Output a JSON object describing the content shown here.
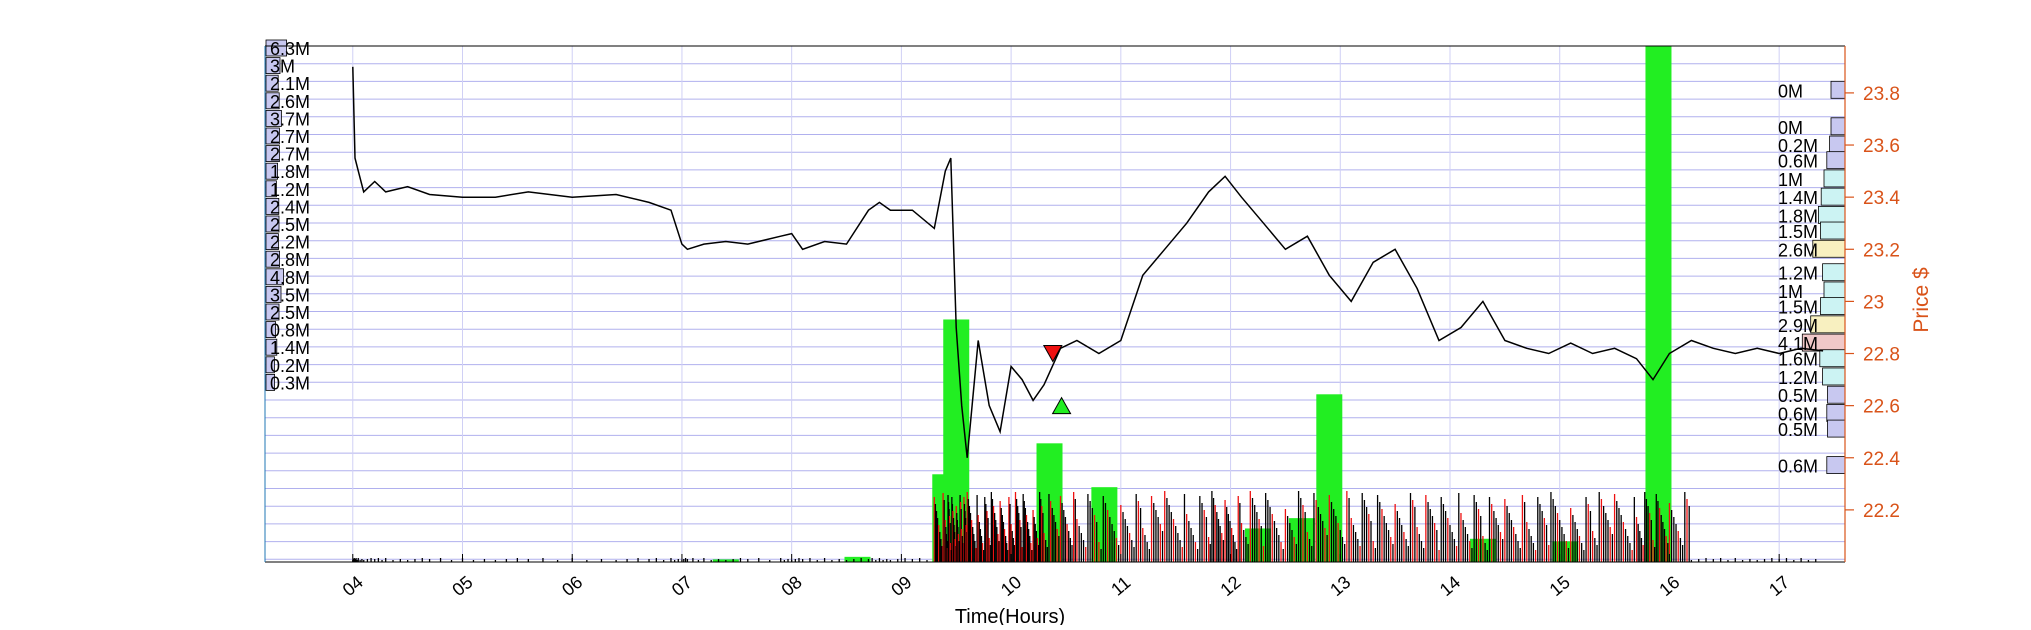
{
  "chart_data": {
    "type": "line",
    "title": "",
    "xlabel": "Time(Hours)",
    "ylabel": "Price $",
    "x_ticks": [
      "04",
      "05",
      "06",
      "07",
      "08",
      "09",
      "10",
      "11",
      "12",
      "13",
      "14",
      "15",
      "16",
      "17"
    ],
    "xlim": [
      3.2,
      17.6
    ],
    "y_ticks": [
      22.2,
      22.4,
      22.6,
      22.8,
      23,
      23.2,
      23.4,
      23.6,
      23.8
    ],
    "ylim": [
      22.0,
      23.98
    ],
    "grid": true,
    "colors": {
      "price_line": "#000000",
      "axis_right": "#d95319",
      "grid": "#b0b0ee",
      "grid_minor": "#d0d0f5",
      "buy_volume": "#22ee22",
      "sell_volume": "#ee1111",
      "profile_left": "#c8c8f0",
      "profile_right": "#c8c8f0",
      "profile_cyan": "#ccf3f3",
      "profile_yellow": "#f8f0c0",
      "profile_pink": "#f0c8c8",
      "sell_marker": "#ee1111",
      "buy_marker": "#22ee22"
    },
    "left_volume_profile_labels": [
      "6.3M",
      "3M",
      "2.1M",
      "2.6M",
      "3.7M",
      "2.7M",
      "2.7M",
      "1.8M",
      "1.2M",
      "2.4M",
      "2.5M",
      "2.2M",
      "2.8M",
      "4.8M",
      "3.5M",
      "2.5M",
      "0.8M",
      "1.4M",
      "0.2M",
      "0.3M"
    ],
    "right_volume_profile_labels": [
      "0M",
      "0M",
      "0.2M",
      "0.6M",
      "1M",
      "1.4M",
      "1.8M",
      "1.5M",
      "2.6M",
      "1.2M",
      "1M",
      "1.5M",
      "2.9M",
      "4.1M",
      "1.6M",
      "1.2M",
      "0.5M",
      "0.6M",
      "0.5M",
      "0.6M"
    ],
    "right_profile_prices": [
      23.81,
      23.67,
      23.6,
      23.54,
      23.47,
      23.4,
      23.33,
      23.27,
      23.2,
      23.11,
      23.04,
      22.98,
      22.91,
      22.84,
      22.78,
      22.71,
      22.64,
      22.57,
      22.51,
      22.37
    ],
    "price_series": {
      "x": [
        4.0,
        4.02,
        4.05,
        4.1,
        4.2,
        4.3,
        4.5,
        4.7,
        5.0,
        5.3,
        5.6,
        6.0,
        6.4,
        6.7,
        6.9,
        7.0,
        7.05,
        7.2,
        7.4,
        7.6,
        7.9,
        8.0,
        8.1,
        8.3,
        8.5,
        8.7,
        8.8,
        8.9,
        9.1,
        9.3,
        9.4,
        9.45,
        9.5,
        9.55,
        9.6,
        9.7,
        9.8,
        9.9,
        10.0,
        10.1,
        10.2,
        10.3,
        10.45,
        10.6,
        10.8,
        11.0,
        11.2,
        11.4,
        11.6,
        11.8,
        11.95,
        12.1,
        12.3,
        12.5,
        12.7,
        12.9,
        13.1,
        13.3,
        13.5,
        13.7,
        13.9,
        14.1,
        14.3,
        14.5,
        14.7,
        14.9,
        15.1,
        15.3,
        15.5,
        15.7,
        15.85,
        16.0,
        16.2,
        16.4,
        16.6,
        16.8,
        17.0,
        17.2,
        17.4
      ],
      "y": [
        23.9,
        23.55,
        23.5,
        23.42,
        23.46,
        23.42,
        23.44,
        23.41,
        23.4,
        23.4,
        23.42,
        23.4,
        23.41,
        23.38,
        23.35,
        23.22,
        23.2,
        23.22,
        23.23,
        23.22,
        23.25,
        23.26,
        23.2,
        23.23,
        23.22,
        23.35,
        23.38,
        23.35,
        23.35,
        23.28,
        23.5,
        23.55,
        22.9,
        22.6,
        22.4,
        22.85,
        22.6,
        22.5,
        22.75,
        22.7,
        22.62,
        22.68,
        22.82,
        22.85,
        22.8,
        22.85,
        23.1,
        23.2,
        23.3,
        23.42,
        23.48,
        23.4,
        23.3,
        23.2,
        23.25,
        23.1,
        23.0,
        23.15,
        23.2,
        23.05,
        22.85,
        22.9,
        23.0,
        22.85,
        22.82,
        22.8,
        22.84,
        22.8,
        22.82,
        22.78,
        22.7,
        22.8,
        22.85,
        22.82,
        22.8,
        22.82,
        22.8,
        22.82,
        22.81
      ]
    },
    "volume_bars": {
      "x": [
        7.4,
        8.6,
        9.4,
        9.5,
        10.35,
        10.85,
        12.25,
        12.65,
        12.9,
        14.3,
        15.05,
        15.9
      ],
      "buy_volume_M": [
        1.0,
        2.0,
        34.0,
        94.0,
        46.0,
        29.0,
        13.0,
        17.0,
        65.0,
        9.0,
        8.0,
        200.0
      ],
      "ylim": [
        0,
        200
      ]
    },
    "signals": [
      {
        "type": "sell",
        "x": 10.38,
        "y": 22.8
      },
      {
        "type": "buy",
        "x": 10.46,
        "y": 22.6
      }
    ]
  }
}
